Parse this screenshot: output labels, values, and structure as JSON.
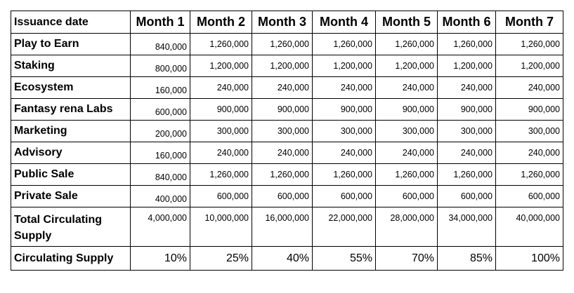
{
  "table": {
    "header": [
      "Issuance date",
      "Month 1",
      "Month 2",
      "Month 3",
      "Month 4",
      "Month 5",
      "Month 6",
      "Month 7"
    ],
    "rows": [
      [
        "Play to Earn",
        "840,000",
        "1,260,000",
        "1,260,000",
        "1,260,000",
        "1,260,000",
        "1,260,000",
        "1,260,000"
      ],
      [
        "Staking",
        "800,000",
        "1,200,000",
        "1,200,000",
        "1,200,000",
        "1,200,000",
        "1,200,000",
        "1,200,000"
      ],
      [
        "Ecosystem",
        "160,000",
        "240,000",
        "240,000",
        "240,000",
        "240,000",
        "240,000",
        "240,000"
      ],
      [
        "Fantasy rena Labs",
        "600,000",
        "900,000",
        "900,000",
        "900,000",
        "900,000",
        "900,000",
        "900,000"
      ],
      [
        "Marketing",
        "200,000",
        "300,000",
        "300,000",
        "300,000",
        "300,000",
        "300,000",
        "300,000"
      ],
      [
        "Advisory",
        "160,000",
        "240,000",
        "240,000",
        "240,000",
        "240,000",
        "240,000",
        "240,000"
      ],
      [
        "Public Sale",
        "840,000",
        "1,260,000",
        "1,260,000",
        "1,260,000",
        "1,260,000",
        "1,260,000",
        "1,260,000"
      ],
      [
        "Private Sale",
        "400,000",
        "600,000",
        "600,000",
        "600,000",
        "600,000",
        "600,000",
        "600,000"
      ],
      [
        "Total Circulating Supply",
        "4,000,000",
        "10,000,000",
        "16,000,000",
        "22,000,000",
        "28,000,000",
        "34,000,000",
        "40,000,000"
      ],
      [
        "Circulating Supply",
        "10%",
        "25%",
        "40%",
        "55%",
        "70%",
        "85%",
        "100%"
      ]
    ]
  }
}
